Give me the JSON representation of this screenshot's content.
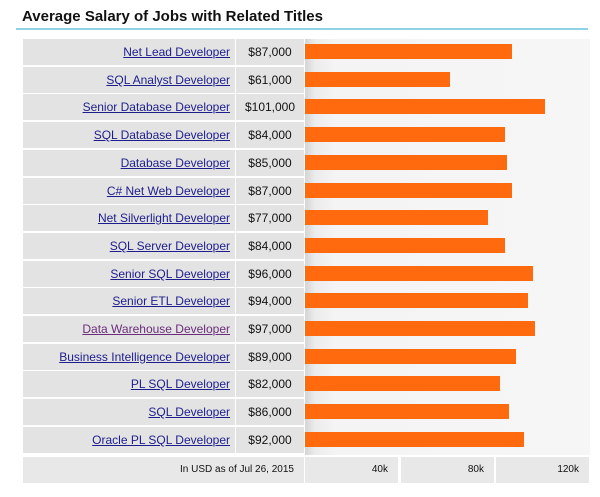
{
  "header": {
    "title": "Average Salary of Jobs with Related Titles"
  },
  "footer": {
    "note": "In USD as of Jul 26, 2015"
  },
  "chart_data": {
    "type": "bar",
    "orientation": "horizontal",
    "categories": [
      "Net Lead Developer",
      "SQL Analyst Developer",
      "Senior Database Developer",
      "SQL Database Developer",
      "Database Developer",
      "C# Net Web Developer",
      "Net Silverlight Developer",
      "SQL Server Developer",
      "Senior SQL Developer",
      "Senior ETL Developer",
      "Data Warehouse Developer",
      "Business Intelligence Developer",
      "PL SQL Developer",
      "SQL Developer",
      "Oracle PL SQL Developer"
    ],
    "value_labels": [
      "$87,000",
      "$61,000",
      "$101,000",
      "$84,000",
      "$85,000",
      "$87,000",
      "$77,000",
      "$84,000",
      "$96,000",
      "$94,000",
      "$97,000",
      "$89,000",
      "$82,000",
      "$86,000",
      "$92,000"
    ],
    "values": [
      87000,
      61000,
      101000,
      84000,
      85000,
      87000,
      77000,
      84000,
      96000,
      94000,
      97000,
      89000,
      82000,
      86000,
      92000
    ],
    "visited": [
      false,
      false,
      false,
      false,
      false,
      false,
      false,
      false,
      false,
      false,
      true,
      false,
      false,
      false,
      false
    ],
    "x_ticks": [
      {
        "label": "40k",
        "value": 40000
      },
      {
        "label": "80k",
        "value": 80000
      },
      {
        "label": "120k",
        "value": 120000
      }
    ],
    "xlim": [
      0,
      120000
    ],
    "bar_color": "#ff6a0e",
    "grid": false
  }
}
